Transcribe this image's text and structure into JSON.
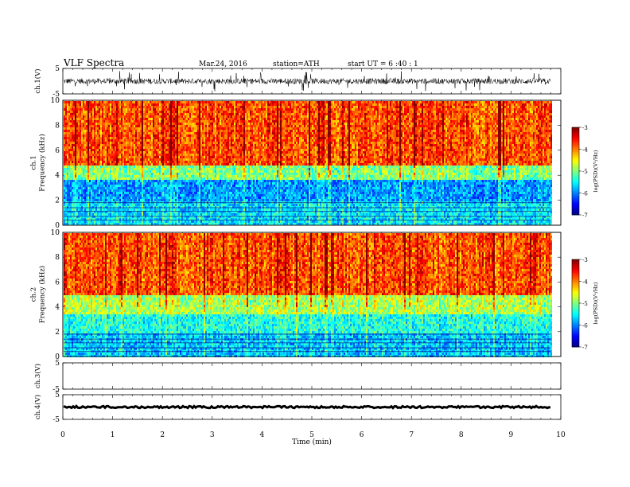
{
  "header": {
    "title": "VLF  Spectra",
    "date": "Mar.24, 2016",
    "station": "station=ATH",
    "start": "start  UT  =   6  :40 : 1"
  },
  "chart_data": [
    {
      "type": "line",
      "title": "VLF  Spectra",
      "ylabel": "ch.1(V)",
      "ylim": [
        -5,
        5
      ],
      "yticks": [
        "5",
        "-5"
      ],
      "xlim": [
        0,
        10
      ],
      "x_extent": [
        0,
        9.8
      ],
      "series_summary": {
        "baseline": 0,
        "typical_range": [
          -1.5,
          1.5
        ],
        "color": "#000000"
      }
    },
    {
      "type": "heatmap",
      "ylabel": "ch.1\nFrequency  (kHz)",
      "ylim": [
        0,
        10
      ],
      "yticks": [
        "0",
        "2",
        "4",
        "6",
        "8",
        "10"
      ],
      "xlim": [
        0,
        10
      ],
      "x_extent": [
        0,
        9.8
      ],
      "colorbar": {
        "label": "log(PSD)(V²/Hz)",
        "range": [
          -7,
          -3
        ],
        "ticks": [
          "-3",
          "-4",
          "-5",
          "-6",
          "-7"
        ]
      },
      "bands_khz": [
        {
          "range": [
            0,
            2
          ],
          "level": -5.6
        },
        {
          "range": [
            2,
            3.8
          ],
          "level": -5.9
        },
        {
          "range": [
            3.8,
            4.8
          ],
          "level": -5.0
        },
        {
          "range": [
            4.8,
            10
          ],
          "level": -3.8
        }
      ]
    },
    {
      "type": "heatmap",
      "ylabel": "ch.2\nFrequency  (kHz)",
      "ylim": [
        0,
        10
      ],
      "yticks": [
        "0",
        "2",
        "4",
        "6",
        "8",
        "10"
      ],
      "xlim": [
        0,
        10
      ],
      "x_extent": [
        0,
        9.8
      ],
      "colorbar": {
        "label": "log(PSD)(V²/Hz)",
        "range": [
          -7,
          -3
        ],
        "ticks": [
          "-3",
          "-4",
          "-5",
          "-6",
          "-7"
        ]
      },
      "bands_khz": [
        {
          "range": [
            0,
            2
          ],
          "level": -5.7
        },
        {
          "range": [
            2,
            3.5
          ],
          "level": -5.4
        },
        {
          "range": [
            3.5,
            5
          ],
          "level": -4.8
        },
        {
          "range": [
            5,
            10
          ],
          "level": -3.8
        }
      ]
    },
    {
      "type": "line",
      "ylabel": "ch.3(V)",
      "ylim": [
        -5,
        5
      ],
      "yticks": [
        "5",
        "-5"
      ],
      "xlim": [
        0,
        10
      ],
      "series_summary": {
        "note": "no data"
      }
    },
    {
      "type": "line",
      "ylabel": "ch.4(V)",
      "ylim": [
        -5,
        5
      ],
      "yticks": [
        "5",
        "-5"
      ],
      "xlim": [
        0,
        10
      ],
      "x_extent": [
        0,
        9.8
      ],
      "series_summary": {
        "baseline": 0,
        "color": "#000000"
      }
    }
  ],
  "xaxis": {
    "label": "Time  (min)",
    "ticks": [
      "0",
      "1",
      "2",
      "3",
      "4",
      "5",
      "6",
      "7",
      "8",
      "9",
      "10"
    ]
  }
}
